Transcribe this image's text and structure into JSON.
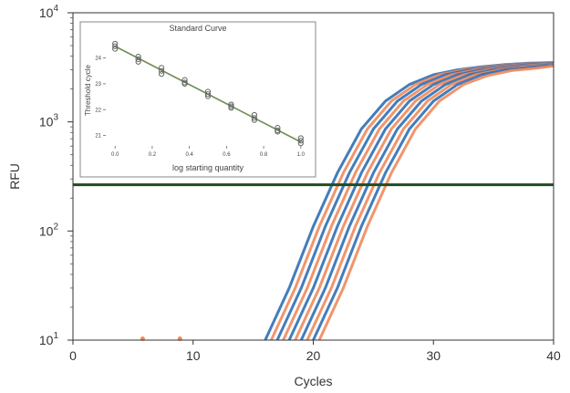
{
  "chart_data": [
    {
      "type": "line",
      "title": "",
      "xlabel": "Cycles",
      "ylabel": "RFU",
      "xlim": [
        0,
        40
      ],
      "ylim": [
        10,
        10000
      ],
      "yscale": "log",
      "x_ticks": [
        "0",
        "10",
        "20",
        "30",
        "40"
      ],
      "y_ticks": [
        {
          "base": "10",
          "exp": "1"
        },
        {
          "base": "10",
          "exp": "2"
        },
        {
          "base": "10",
          "exp": "3"
        },
        {
          "base": "10",
          "exp": "4"
        }
      ],
      "grid": false,
      "threshold_rfu": 265,
      "threshold_color": "#1f4d1f",
      "series_colors": [
        "#2e6fb5",
        "#f08a5d"
      ],
      "series": [
        {
          "color": "#2e6fb5",
          "x": [
            16,
            18,
            20,
            22,
            24,
            26,
            28,
            30,
            32,
            34,
            36,
            38,
            40
          ],
          "y": [
            10,
            30,
            110,
            340,
            860,
            1550,
            2200,
            2700,
            3000,
            3200,
            3350,
            3450,
            3500
          ]
        },
        {
          "color": "#f08a5d",
          "x": [
            16.5,
            18.5,
            20.5,
            22.5,
            24.5,
            26.5,
            28.5,
            30.5,
            32.5,
            34.5,
            36.5,
            38.5,
            40
          ],
          "y": [
            10,
            30,
            110,
            340,
            860,
            1550,
            2200,
            2700,
            3000,
            3200,
            3350,
            3450,
            3480
          ]
        },
        {
          "color": "#2e6fb5",
          "x": [
            17,
            19,
            21,
            23,
            25,
            27,
            29,
            31,
            33,
            35,
            37,
            39,
            40
          ],
          "y": [
            10,
            30,
            110,
            340,
            860,
            1550,
            2200,
            2700,
            3000,
            3200,
            3350,
            3450,
            3470
          ]
        },
        {
          "color": "#f08a5d",
          "x": [
            17.5,
            19.5,
            21.5,
            23.5,
            25.5,
            27.5,
            29.5,
            31.5,
            33.5,
            35.5,
            37.5,
            39.5,
            40
          ],
          "y": [
            10,
            30,
            110,
            340,
            860,
            1550,
            2200,
            2700,
            3000,
            3200,
            3350,
            3440,
            3450
          ]
        },
        {
          "color": "#2e6fb5",
          "x": [
            18,
            20,
            22,
            24,
            26,
            28,
            30,
            32,
            34,
            36,
            38,
            40
          ],
          "y": [
            10,
            30,
            110,
            340,
            860,
            1550,
            2200,
            2700,
            3000,
            3200,
            3350,
            3430
          ]
        },
        {
          "color": "#f08a5d",
          "x": [
            18.5,
            20.5,
            22.5,
            24.5,
            26.5,
            28.5,
            30.5,
            32.5,
            34.5,
            36.5,
            38.5,
            40
          ],
          "y": [
            10,
            30,
            110,
            340,
            860,
            1550,
            2200,
            2700,
            3000,
            3200,
            3320,
            3400
          ]
        },
        {
          "color": "#2e6fb5",
          "x": [
            19,
            21,
            23,
            25,
            27,
            29,
            31,
            33,
            35,
            37,
            39,
            40
          ],
          "y": [
            10,
            30,
            110,
            340,
            860,
            1550,
            2200,
            2700,
            3000,
            3200,
            3300,
            3380
          ]
        },
        {
          "color": "#f08a5d",
          "x": [
            19.5,
            21.5,
            23.5,
            25.5,
            27.5,
            29.5,
            31.5,
            33.5,
            35.5,
            37.5,
            39.5,
            40
          ],
          "y": [
            10,
            30,
            110,
            340,
            860,
            1550,
            2200,
            2700,
            3000,
            3180,
            3280,
            3350
          ]
        },
        {
          "color": "#2e6fb5",
          "x": [
            20,
            22,
            24,
            26,
            28,
            30,
            32,
            34,
            36,
            38,
            40
          ],
          "y": [
            10,
            30,
            110,
            340,
            860,
            1550,
            2200,
            2700,
            3000,
            3150,
            3300
          ]
        },
        {
          "color": "#f08a5d",
          "x": [
            20.5,
            22.5,
            24.5,
            26.5,
            28.5,
            30.5,
            32.5,
            34.5,
            36.5,
            38.5,
            40
          ],
          "y": [
            10,
            30,
            110,
            340,
            860,
            1550,
            2200,
            2650,
            2950,
            3100,
            3250
          ]
        }
      ],
      "outlier_points": {
        "color": "#f08a5d",
        "x": [
          5.8,
          8.9
        ],
        "y": [
          10.3,
          10.3
        ]
      }
    },
    {
      "type": "scatter",
      "title": "Standard Curve",
      "xlabel": "log starting quantity",
      "ylabel": "Threshold cycle",
      "x_ticks": [
        "0.0",
        "0.2",
        "0.4",
        "0.6",
        "0.8",
        "1.0"
      ],
      "y_ticks": [
        "21",
        "22",
        "23",
        "24"
      ],
      "xlim": [
        -0.05,
        1.05
      ],
      "ylim": [
        20.6,
        24.9
      ],
      "fit_line": {
        "x": [
          0.0,
          1.0
        ],
        "y": [
          24.45,
          20.75
        ]
      },
      "fit_color": "#6f8f55",
      "point_color": "#666666",
      "points": {
        "x": [
          0.0,
          0.0,
          0.0,
          0.125,
          0.125,
          0.125,
          0.25,
          0.25,
          0.25,
          0.375,
          0.375,
          0.375,
          0.5,
          0.5,
          0.5,
          0.625,
          0.625,
          0.625,
          0.75,
          0.75,
          0.75,
          0.875,
          0.875,
          0.875,
          1.0,
          1.0,
          1.0
        ],
        "y": [
          24.55,
          24.45,
          24.35,
          24.05,
          23.95,
          23.85,
          23.62,
          23.5,
          23.38,
          23.15,
          23.05,
          23.0,
          22.7,
          22.6,
          22.52,
          22.2,
          22.13,
          22.07,
          21.8,
          21.68,
          21.6,
          21.3,
          21.2,
          21.15,
          20.9,
          20.8,
          20.7
        ]
      }
    }
  ]
}
